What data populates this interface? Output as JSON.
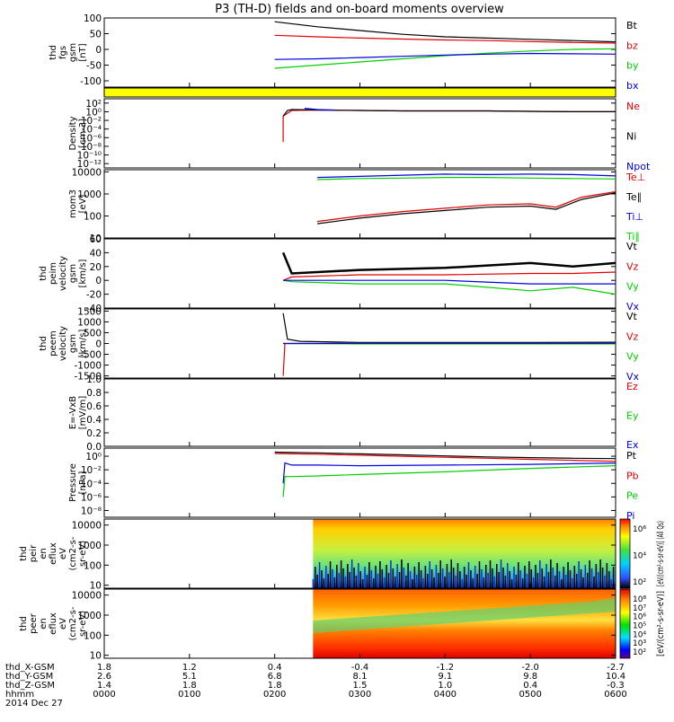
{
  "title": "P3 (TH-D) fields and on-board moments overview",
  "colors": {
    "black": "#000000",
    "red": "#e00000",
    "green": "#00d000",
    "blue": "#0000e0",
    "yellow": "#ffff00"
  },
  "chart_data": [
    {
      "id": "fgs",
      "type": "line",
      "ylabel_lines": [
        "thd",
        "fgs",
        "gsm",
        "[nT]"
      ],
      "ylim": [
        -120,
        100
      ],
      "yticks": [
        "100",
        "50",
        "0",
        "-50",
        "-100"
      ],
      "yvals": [
        100,
        50,
        0,
        -50,
        -100
      ],
      "legend": [
        {
          "text": "Bt",
          "color": "black"
        },
        {
          "text": "bz",
          "color": "red"
        },
        {
          "text": "by",
          "color": "green"
        },
        {
          "text": "bx",
          "color": "blue"
        }
      ],
      "series": [
        {
          "name": "Bt",
          "color": "black",
          "x": [
            2.0,
            2.5,
            3.0,
            3.5,
            4.0,
            4.5,
            5.0,
            5.5,
            6.0
          ],
          "y": [
            88,
            72,
            60,
            48,
            40,
            36,
            32,
            28,
            24
          ]
        },
        {
          "name": "bz",
          "color": "red",
          "x": [
            2.0,
            2.5,
            3.0,
            3.5,
            4.0,
            4.5,
            5.0,
            5.5,
            6.0
          ],
          "y": [
            45,
            40,
            36,
            33,
            30,
            28,
            25,
            22,
            20
          ]
        },
        {
          "name": "by",
          "color": "green",
          "x": [
            2.0,
            2.5,
            3.0,
            3.5,
            4.0,
            4.5,
            5.0,
            5.5,
            6.0
          ],
          "y": [
            -60,
            -50,
            -40,
            -30,
            -20,
            -12,
            -5,
            0,
            2
          ]
        },
        {
          "name": "bx",
          "color": "blue",
          "x": [
            2.0,
            2.5,
            3.0,
            3.5,
            4.0,
            4.5,
            5.0,
            5.5,
            6.0
          ],
          "y": [
            -32,
            -30,
            -26,
            -22,
            -18,
            -15,
            -13,
            -14,
            -15
          ]
        }
      ]
    },
    {
      "id": "flags",
      "type": "bar",
      "ylabel_lines": [],
      "x_range": [
        0,
        6
      ],
      "color": "yellow"
    },
    {
      "id": "density",
      "type": "line",
      "log": true,
      "ylabel_lines": [
        "Density",
        "[cm-3]"
      ],
      "ylim": [
        -13,
        3
      ],
      "yticks": [
        "10²",
        "10⁰",
        "10⁻²",
        "10⁻⁴",
        "10⁻⁶",
        "10⁻⁸",
        "10⁻¹⁰",
        "10⁻¹²"
      ],
      "yvals": [
        2,
        0,
        -2,
        -4,
        -6,
        -8,
        -10,
        -12
      ],
      "legend": [
        {
          "text": "Ne",
          "color": "red"
        },
        {
          "text": "Ni",
          "color": "black"
        },
        {
          "text": "Npot",
          "color": "blue"
        }
      ],
      "series": [
        {
          "name": "Ne",
          "color": "red",
          "x": [
            2.1,
            2.1,
            2.2,
            2.5,
            3.0,
            3.5,
            4.0,
            4.5,
            5.0,
            5.5,
            6.0
          ],
          "y": [
            -7,
            -1,
            0.3,
            0.4,
            0.3,
            0.2,
            0.2,
            0.2,
            0.1,
            0.0,
            0.0
          ]
        },
        {
          "name": "Ni",
          "color": "black",
          "x": [
            2.1,
            2.15,
            2.2,
            2.5,
            3.0,
            3.5,
            4.0,
            4.5,
            5.0,
            5.5,
            6.0
          ],
          "y": [
            -1,
            0.3,
            0.5,
            0.4,
            0.3,
            0.2,
            0.2,
            0.2,
            0.1,
            0.0,
            0.0
          ]
        },
        {
          "name": "Npot",
          "color": "blue",
          "x": [
            2.35,
            2.5,
            2.7
          ],
          "y": [
            0.8,
            0.5,
            0.4
          ]
        }
      ]
    },
    {
      "id": "temp",
      "type": "line",
      "log": true,
      "ylabel_lines": [
        "mom3",
        "[eV]"
      ],
      "ylim": [
        1,
        4.1
      ],
      "yticks": [
        "10000",
        "1000",
        "100",
        "10"
      ],
      "yvals": [
        4,
        3,
        2,
        1
      ],
      "legend": [
        {
          "text": "Te⊥",
          "color": "red"
        },
        {
          "text": "Te∥",
          "color": "black"
        },
        {
          "text": "Ti⊥",
          "color": "blue"
        },
        {
          "text": "Ti∥",
          "color": "green"
        }
      ],
      "series": [
        {
          "name": "Ti⊥",
          "color": "blue",
          "x": [
            2.5,
            3.0,
            3.5,
            4.0,
            4.5,
            5.0,
            5.5,
            6.0
          ],
          "y": [
            3.75,
            3.8,
            3.85,
            3.9,
            3.88,
            3.9,
            3.88,
            3.82
          ]
        },
        {
          "name": "Ti∥",
          "color": "green",
          "x": [
            2.5,
            3.0,
            3.5,
            4.0,
            4.5,
            5.0,
            5.5,
            6.0
          ],
          "y": [
            3.65,
            3.7,
            3.72,
            3.75,
            3.75,
            3.72,
            3.7,
            3.68
          ]
        },
        {
          "name": "Te⊥",
          "color": "red",
          "x": [
            2.5,
            3.0,
            3.5,
            4.0,
            4.5,
            5.0,
            5.3,
            5.6,
            6.0
          ],
          "y": [
            1.75,
            2.0,
            2.2,
            2.35,
            2.5,
            2.55,
            2.4,
            2.85,
            3.1
          ]
        },
        {
          "name": "Te∥",
          "color": "black",
          "x": [
            2.5,
            3.0,
            3.5,
            4.0,
            4.5,
            5.0,
            5.3,
            5.6,
            6.0
          ],
          "y": [
            1.65,
            1.9,
            2.1,
            2.25,
            2.4,
            2.45,
            2.3,
            2.75,
            3.05
          ]
        }
      ]
    },
    {
      "id": "peim",
      "type": "line",
      "ylabel_lines": [
        "thd",
        "peim",
        "velocity",
        "gsm",
        "[km/s]"
      ],
      "ylim": [
        -40,
        60
      ],
      "yticks": [
        "60",
        "40",
        "20",
        "0",
        "-20",
        "-40"
      ],
      "yvals": [
        60,
        40,
        20,
        0,
        -20,
        -40
      ],
      "legend": [
        {
          "text": "Vt",
          "color": "black"
        },
        {
          "text": "Vz",
          "color": "red"
        },
        {
          "text": "Vy",
          "color": "green"
        },
        {
          "text": "Vx",
          "color": "blue"
        }
      ],
      "series": [
        {
          "name": "Vt",
          "color": "black",
          "x": [
            2.1,
            2.2,
            3.0,
            4.0,
            5.0,
            5.5,
            6.0
          ],
          "y": [
            40,
            10,
            15,
            18,
            25,
            20,
            25
          ]
        },
        {
          "name": "Vz",
          "color": "red",
          "x": [
            2.1,
            2.2,
            3.0,
            4.0,
            5.0,
            5.5,
            6.0
          ],
          "y": [
            0,
            5,
            8,
            8,
            10,
            10,
            12
          ]
        },
        {
          "name": "Vy",
          "color": "green",
          "x": [
            2.1,
            2.2,
            3.0,
            4.0,
            5.0,
            5.5,
            6.0
          ],
          "y": [
            0,
            -2,
            -5,
            -5,
            -15,
            -10,
            -20
          ]
        },
        {
          "name": "Vx",
          "color": "blue",
          "x": [
            2.1,
            2.2,
            3.0,
            4.0,
            5.0,
            5.5,
            6.0
          ],
          "y": [
            0,
            0,
            0,
            0,
            -5,
            -5,
            -5
          ]
        }
      ]
    },
    {
      "id": "peem",
      "type": "line",
      "ylabel_lines": [
        "thd",
        "peem",
        "velocity",
        "gsm",
        "[km/s]"
      ],
      "ylim": [
        -1600,
        1600
      ],
      "yticks": [
        "1500",
        "1000",
        "500",
        "0",
        "-500",
        "-1000",
        "-1500"
      ],
      "yvals": [
        1500,
        1000,
        500,
        0,
        -500,
        -1000,
        -1500
      ],
      "legend": [
        {
          "text": "Vt",
          "color": "black"
        },
        {
          "text": "Vz",
          "color": "red"
        },
        {
          "text": "Vy",
          "color": "green"
        },
        {
          "text": "Vx",
          "color": "blue"
        }
      ],
      "series": [
        {
          "name": "Vt",
          "color": "black",
          "x": [
            2.1,
            2.15,
            2.3,
            3.0,
            4.0,
            5.0,
            6.0
          ],
          "y": [
            1400,
            200,
            100,
            50,
            50,
            50,
            60
          ]
        },
        {
          "name": "Vz",
          "color": "red",
          "x": [
            2.1,
            2.12,
            2.3,
            3.0,
            4.0,
            5.0,
            6.0
          ],
          "y": [
            -1500,
            0,
            0,
            0,
            0,
            0,
            0
          ]
        },
        {
          "name": "Vy",
          "color": "green",
          "x": [
            2.1,
            2.3,
            3.0,
            4.0,
            5.0,
            6.0
          ],
          "y": [
            0,
            0,
            -20,
            -20,
            -20,
            -20
          ]
        },
        {
          "name": "Vx",
          "color": "blue",
          "x": [
            2.1,
            2.3,
            3.0,
            4.0,
            5.0,
            6.0
          ],
          "y": [
            0,
            0,
            10,
            10,
            10,
            10
          ]
        }
      ]
    },
    {
      "id": "efield",
      "type": "line",
      "ylabel_lines": [
        "E=-VxB",
        "[mV/m]"
      ],
      "ylim": [
        0,
        1
      ],
      "yticks": [
        "1.0",
        "0.8",
        "0.6",
        "0.4",
        "0.2",
        "0.0"
      ],
      "yvals": [
        1.0,
        0.8,
        0.6,
        0.4,
        0.2,
        0.0
      ],
      "legend": [
        {
          "text": "Ez",
          "color": "red"
        },
        {
          "text": "Ey",
          "color": "green"
        },
        {
          "text": "Ex",
          "color": "blue"
        }
      ],
      "series": []
    },
    {
      "id": "pressure",
      "type": "line",
      "log": true,
      "ylabel_lines": [
        "Pressure",
        "[nPa]"
      ],
      "ylim": [
        -9,
        1.2
      ],
      "yticks": [
        "10⁰",
        "10⁻²",
        "10⁻⁴",
        "10⁻⁶",
        "10⁻⁸"
      ],
      "yvals": [
        0,
        -2,
        -4,
        -6,
        -8
      ],
      "legend": [
        {
          "text": "Pt",
          "color": "black"
        },
        {
          "text": "Pb",
          "color": "red"
        },
        {
          "text": "Pe",
          "color": "green"
        },
        {
          "text": "Pi",
          "color": "blue"
        }
      ],
      "series": [
        {
          "name": "Pt",
          "color": "black",
          "x": [
            2.0,
            2.5,
            3.0,
            3.5,
            4.0,
            4.5,
            5.0,
            5.5,
            6.0
          ],
          "y": [
            0.6,
            0.5,
            0.35,
            0.2,
            0.05,
            -0.1,
            -0.2,
            -0.3,
            -0.35
          ]
        },
        {
          "name": "Pb",
          "color": "red",
          "x": [
            2.0,
            2.5,
            3.0,
            3.5,
            4.0,
            4.5,
            5.0,
            5.5,
            6.0
          ],
          "y": [
            0.4,
            0.3,
            0.15,
            0.0,
            -0.15,
            -0.3,
            -0.45,
            -0.6,
            -0.75
          ]
        },
        {
          "name": "Pi",
          "color": "blue",
          "x": [
            2.1,
            2.12,
            2.2,
            2.5,
            3.0,
            4.0,
            5.0,
            6.0
          ],
          "y": [
            -4,
            -1,
            -1.3,
            -1.3,
            -1.4,
            -1.3,
            -1.2,
            -1.0
          ]
        },
        {
          "name": "Pe",
          "color": "green",
          "x": [
            2.1,
            2.12,
            2.2,
            2.5,
            3.0,
            4.0,
            5.0,
            6.0
          ],
          "y": [
            -6,
            -3,
            -3.0,
            -2.9,
            -2.7,
            -2.3,
            -1.8,
            -1.4
          ]
        }
      ]
    },
    {
      "id": "peir",
      "type": "heatmap",
      "log": true,
      "ylabel_lines": [
        "thd",
        "peir",
        "en",
        "eflux",
        "eV",
        "(cm2-s-",
        "sr-eV)"
      ],
      "ylim": [
        0.85,
        4.3
      ],
      "yticks": [
        "10000",
        "1000",
        "100",
        "10"
      ],
      "yvals": [
        4,
        3,
        2,
        1
      ],
      "x_start": 2.45,
      "colorbar_ticks": [
        "10⁶",
        "10⁴",
        "10²"
      ],
      "colorbar_label": "[eV/(cm²-s-sr-eV)] (All Qs)"
    },
    {
      "id": "peer",
      "type": "heatmap",
      "log": true,
      "ylabel_lines": [
        "thd",
        "peer",
        "en",
        "eflux",
        "eV",
        "(cm2-s-",
        "sr-eV)"
      ],
      "ylim": [
        0.85,
        4.3
      ],
      "yticks": [
        "10000",
        "1000",
        "100",
        "10"
      ],
      "yvals": [
        4,
        3,
        2,
        1
      ],
      "x_start": 2.45,
      "colorbar_ticks": [
        "10⁸",
        "10⁷",
        "10⁶",
        "10⁵",
        "10⁴",
        "10³",
        "10²"
      ],
      "colorbar_label": "[eV/(cm²-s-sr-eV)]"
    }
  ],
  "xaxis": {
    "x": [
      0,
      1,
      2,
      3,
      4,
      5,
      6
    ],
    "rows": [
      {
        "label": "thd_X-GSM",
        "values": [
          "1.8",
          "1.2",
          "0.4",
          "-0.4",
          "-1.2",
          "-2.0",
          "-2.7"
        ]
      },
      {
        "label": "thd_Y-GSM",
        "values": [
          "2.6",
          "5.1",
          "6.8",
          "8.1",
          "9.1",
          "9.8",
          "10.4"
        ]
      },
      {
        "label": "thd_Z-GSM",
        "values": [
          "1.4",
          "1.8",
          "1.8",
          "1.5",
          "1.0",
          "0.4",
          "-0.3"
        ]
      },
      {
        "label": "hhmm",
        "values": [
          "0000",
          "0100",
          "0200",
          "0300",
          "0400",
          "0500",
          "0600"
        ]
      }
    ],
    "date": "2014 Dec 27"
  }
}
